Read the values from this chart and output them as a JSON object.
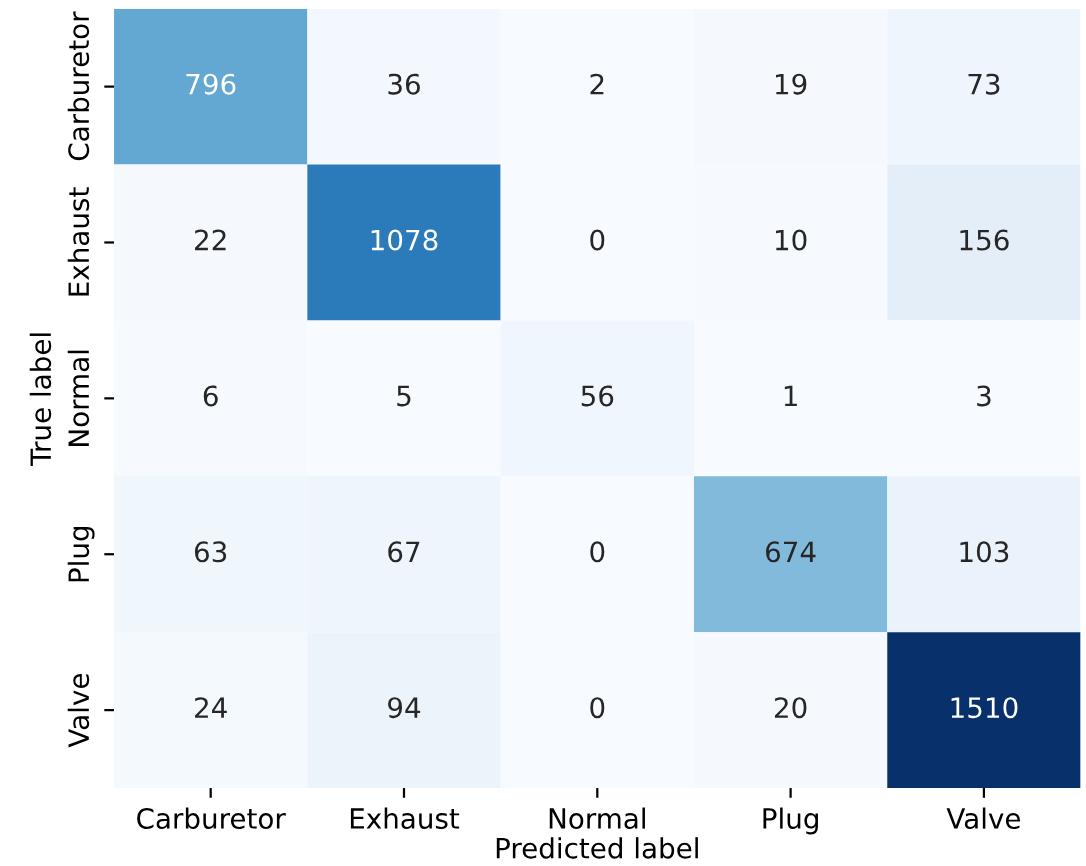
{
  "chart_data": {
    "type": "heatmap",
    "xlabel": "Predicted label",
    "ylabel": "True label",
    "categories": [
      "Carburetor",
      "Exhaust",
      "Normal",
      "Plug",
      "Valve"
    ],
    "y_categories": [
      "Carburetor",
      "Exhaust",
      "Normal",
      "Plug",
      "Valve"
    ],
    "cells": [
      [
        796,
        36,
        2,
        19,
        73
      ],
      [
        22,
        1078,
        0,
        10,
        156
      ],
      [
        6,
        5,
        56,
        1,
        3
      ],
      [
        63,
        67,
        0,
        674,
        103
      ],
      [
        24,
        94,
        0,
        20,
        1510
      ]
    ],
    "data_labels": true
  }
}
